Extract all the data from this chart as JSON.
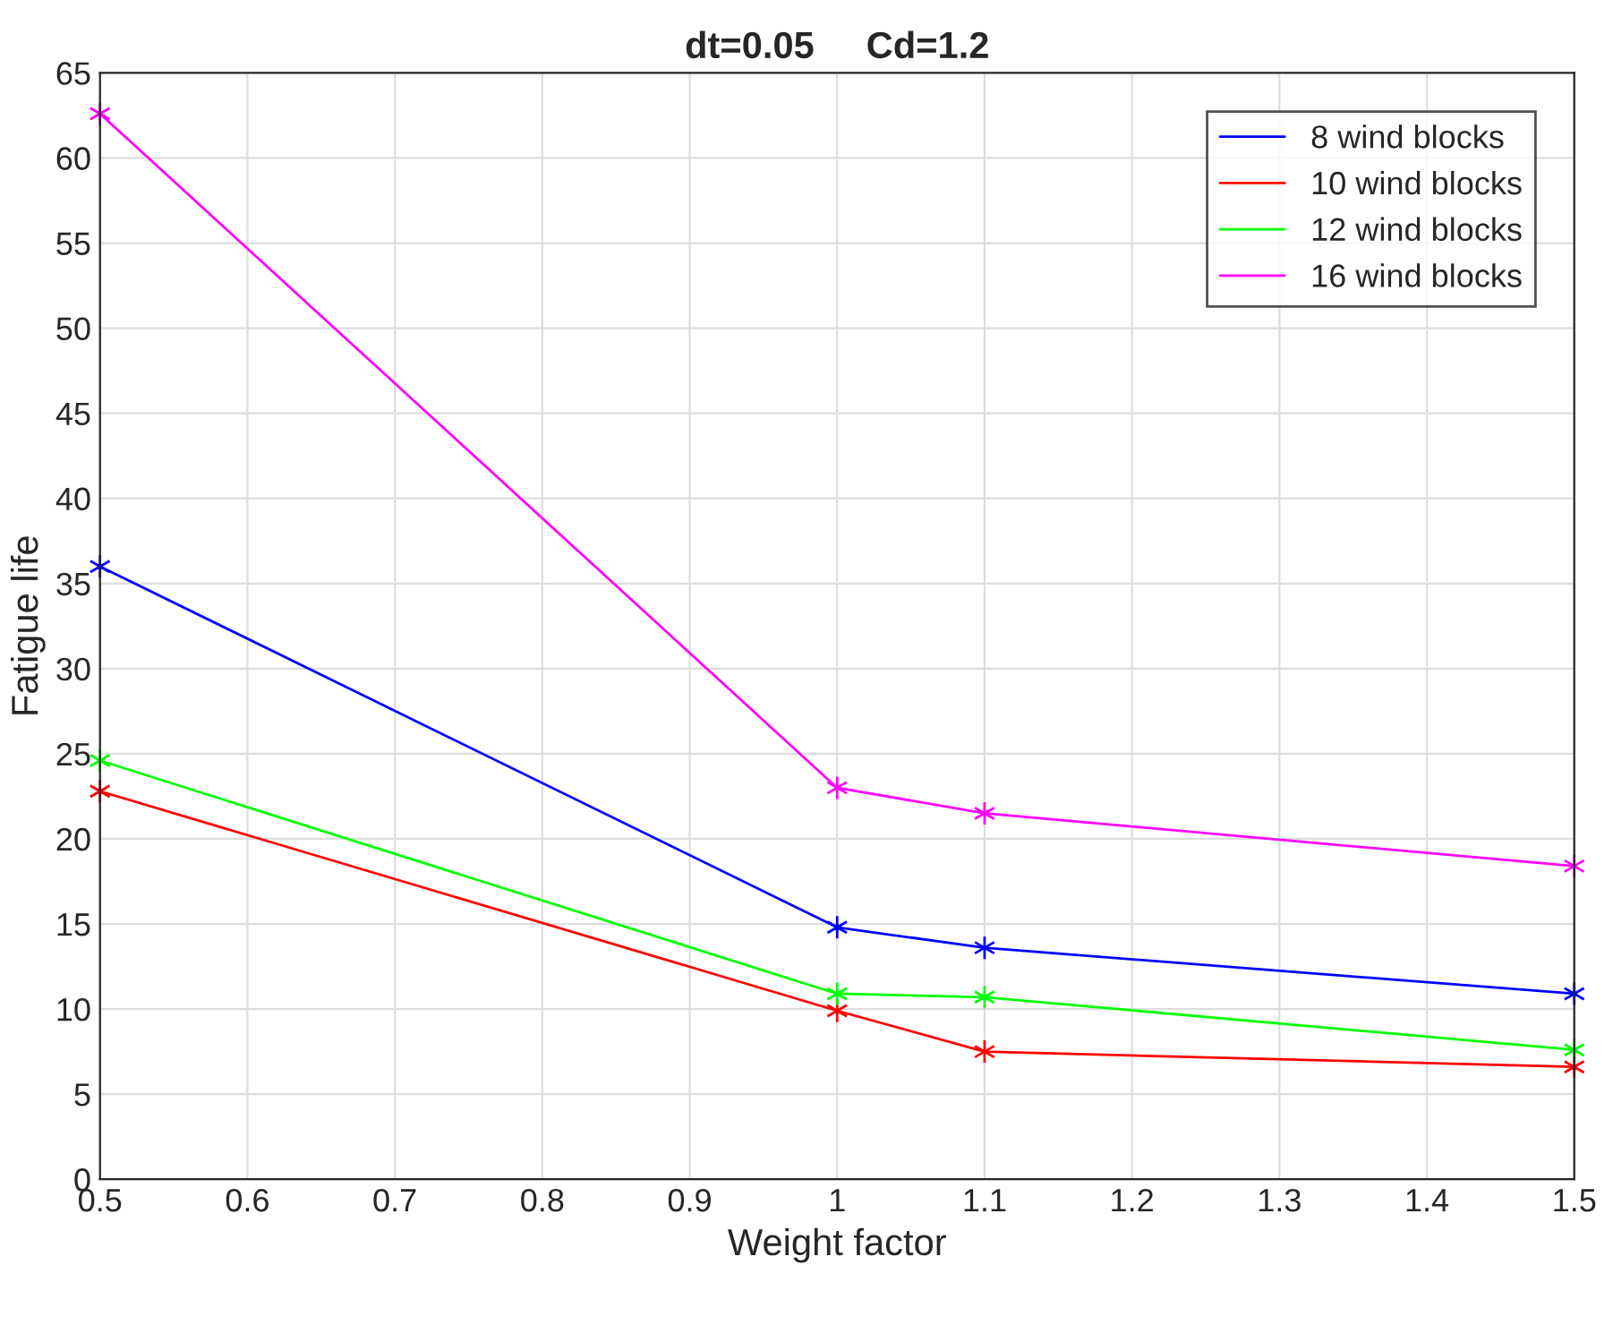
{
  "chart_data": {
    "type": "line",
    "title": "dt=0.05     Cd=1.2",
    "xlabel": "Weight factor",
    "ylabel": "Fatigue life",
    "x": [
      0.5,
      1.0,
      1.1,
      1.5
    ],
    "series": [
      {
        "name": "8 wind blocks",
        "color": "#0000ff",
        "values": [
          36.0,
          14.8,
          13.6,
          10.9
        ]
      },
      {
        "name": "10 wind blocks",
        "color": "#ff0000",
        "values": [
          22.8,
          9.9,
          7.5,
          6.6
        ]
      },
      {
        "name": "12 wind blocks",
        "color": "#00ff00",
        "values": [
          24.6,
          10.9,
          10.7,
          7.6
        ]
      },
      {
        "name": "16 wind blocks",
        "color": "#ff00ff",
        "values": [
          62.6,
          23.0,
          21.5,
          18.4
        ]
      }
    ],
    "xlim": [
      0.5,
      1.5
    ],
    "xticks": [
      0.5,
      0.6,
      0.7,
      0.8,
      0.9,
      {
        "value": 1.0,
        "label": "1"
      },
      1.1,
      1.2,
      1.3,
      1.4,
      1.5
    ],
    "ylim": [
      0,
      65
    ],
    "yticks": [
      0,
      5,
      10,
      15,
      20,
      25,
      30,
      35,
      40,
      45,
      50,
      55,
      60,
      65
    ],
    "grid": true,
    "legend": "top right",
    "marker": "cross",
    "line_style": "solid"
  }
}
